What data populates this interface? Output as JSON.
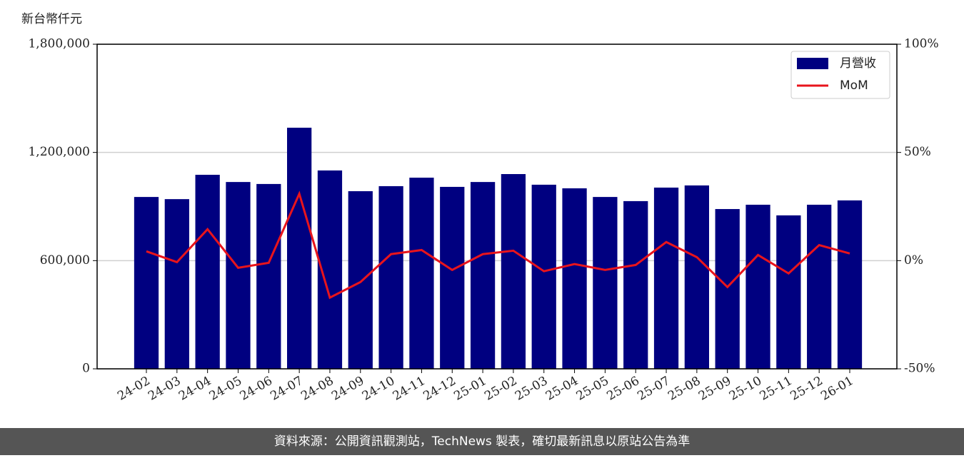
{
  "chart_data": {
    "type": "bar-line",
    "y_label": "新台幣仟元",
    "categories": [
      "24-02",
      "24-03",
      "24-04",
      "24-05",
      "24-06",
      "24-07",
      "24-08",
      "24-09",
      "24-10",
      "24-11",
      "24-12",
      "25-01",
      "25-02",
      "25-03",
      "25-04",
      "25-05",
      "25-06",
      "25-07",
      "25-08",
      "25-09",
      "25-10",
      "25-11",
      "25-12",
      "26-01"
    ],
    "series": [
      {
        "name": "月營收",
        "color": "#000080",
        "values": [
          953000,
          941000,
          1076000,
          1036000,
          1025000,
          1337000,
          1100000,
          985000,
          1013000,
          1060000,
          1009000,
          1036000,
          1080000,
          1021000,
          1001000,
          953000,
          930000,
          1005000,
          1017000,
          886000,
          910000,
          851000,
          910000,
          934000
        ]
      },
      {
        "name": "MoM",
        "color": "#e8141c",
        "axis": "y2",
        "values": [
          4.3,
          -0.7,
          14.5,
          -3.3,
          -1.0,
          30.9,
          -17.1,
          -9.9,
          3.0,
          4.9,
          -4.3,
          3.0,
          4.6,
          -4.9,
          -1.6,
          -4.3,
          -2.0,
          8.6,
          1.6,
          -12.2,
          2.6,
          -5.9,
          7.2,
          3.3
        ]
      }
    ],
    "ylim": [
      0,
      1800000
    ],
    "yticks": [
      0,
      {
        "value": 600000,
        "label": "600,000"
      },
      {
        "value": 1200000,
        "label": "1,200,000"
      },
      {
        "value": 1800000,
        "label": "1,800,000"
      }
    ],
    "y2lim": [
      -50,
      100
    ],
    "y2ticks": [
      {
        "value": -50,
        "label": "-50%"
      },
      {
        "value": 0,
        "label": "0%"
      },
      {
        "value": 50,
        "label": "50%"
      },
      {
        "value": 100,
        "label": "100%"
      }
    ],
    "grid": true,
    "legend": "upper right",
    "footer": "資料來源：公開資訊觀測站，TechNews 製表，確切最新訊息以原站公告為準"
  }
}
